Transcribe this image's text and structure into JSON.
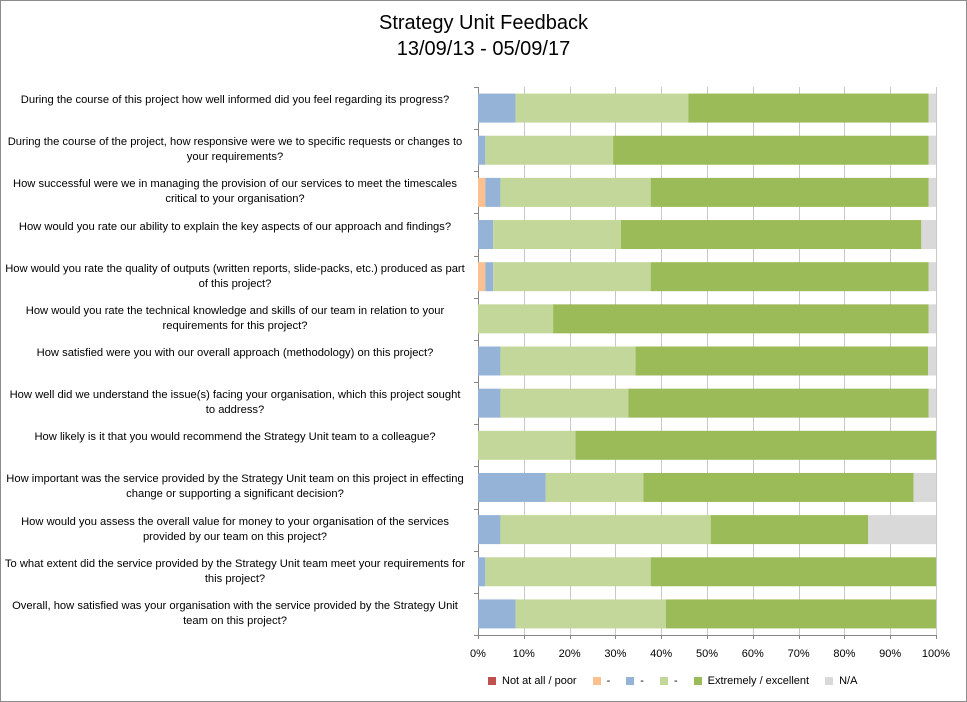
{
  "chart_data": {
    "type": "bar",
    "orientation": "horizontal",
    "stacked": "percent",
    "title": "Strategy Unit Feedback",
    "subtitle": "13/09/13 - 05/09/17",
    "categories": [
      "During the course of this project how well informed did you feel regarding its progress?",
      "During the course of the project, how responsive were we to specific requests or changes to your requirements?",
      "How successful were we in managing the provision of our services to meet the timescales critical to your organisation?",
      "How would you rate our ability to explain the key aspects of our approach and findings?",
      "How would you rate the quality of outputs (written reports, slide-packs, etc.) produced as part of this project?",
      "How would you rate the technical knowledge and skills of our team in relation to your requirements for this project?",
      "How satisfied were you with our overall approach (methodology) on this project?",
      "How well did we understand the issue(s) facing your organisation, which this project sought to address?",
      "How likely is it that you would recommend the Strategy Unit team to a colleague?",
      "How important was the service provided by the Strategy Unit team on this project in effecting change or supporting a significant decision?",
      "How would you assess the overall value for money to your organisation of the services provided by our team on this project?",
      "To what extent did the service provided by the Strategy Unit team meet your requirements for this project?",
      "Overall, how satisfied was your organisation with the service provided by the Strategy Unit team on this project?"
    ],
    "series": [
      {
        "name": "Not at all / poor",
        "color": "#c0504d",
        "values": [
          0,
          0,
          0,
          0,
          0,
          0,
          0,
          0,
          0,
          0,
          0,
          0,
          0
        ]
      },
      {
        "name": "-",
        "color": "#fac090",
        "values": [
          0,
          0,
          1.6,
          0,
          1.6,
          0,
          0,
          0,
          0,
          0,
          0,
          0,
          0
        ]
      },
      {
        "name": "-",
        "color": "#95b3d7",
        "values": [
          8.2,
          1.6,
          3.3,
          3.3,
          1.7,
          0,
          4.9,
          4.9,
          0,
          14.8,
          4.9,
          1.6,
          8.2
        ]
      },
      {
        "name": "-",
        "color": "#c4d79b",
        "values": [
          37.7,
          27.9,
          32.8,
          27.9,
          34.4,
          16.4,
          29.5,
          27.9,
          21.3,
          21.3,
          45.9,
          36.1,
          32.8
        ]
      },
      {
        "name": "Extremely / excellent",
        "color": "#9bbb59",
        "values": [
          52.5,
          68.9,
          60.7,
          65.6,
          60.7,
          82.0,
          63.9,
          65.6,
          78.7,
          59.0,
          34.4,
          62.3,
          59.0
        ]
      },
      {
        "name": "N/A",
        "color": "#d9d9d9",
        "values": [
          1.6,
          1.6,
          1.6,
          3.2,
          1.6,
          1.6,
          1.7,
          1.6,
          0,
          4.9,
          14.8,
          0,
          0
        ]
      }
    ],
    "xlim": [
      0,
      100
    ],
    "x_ticks": [
      "0%",
      "10%",
      "20%",
      "30%",
      "40%",
      "50%",
      "60%",
      "70%",
      "80%",
      "90%",
      "100%"
    ],
    "grid": true,
    "legend_position": "bottom"
  }
}
